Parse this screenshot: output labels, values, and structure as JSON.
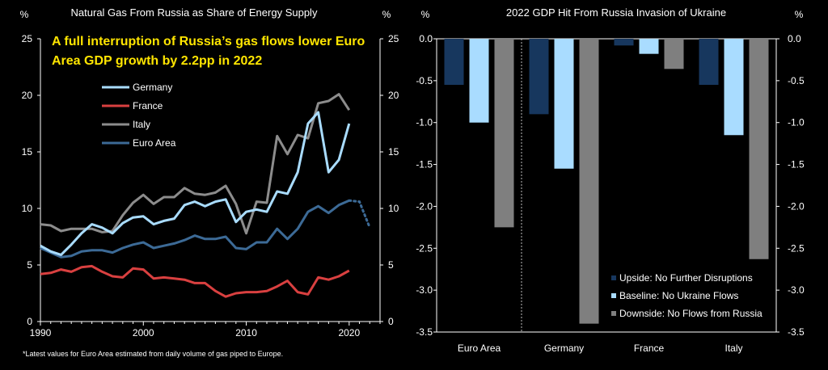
{
  "chart_data": [
    {
      "type": "line",
      "title": "Natural Gas From Russia as Share of Energy Supply",
      "annotation": "A full interruption of Russia’s gas flows lower Euro Area GDP growth by 2.2pp in 2022",
      "footnote": "*Latest values for Euro Area estimated from daily volume of gas piped to Europe.",
      "ylabel_left": "%",
      "ylabel_right": "%",
      "xlim": [
        1990,
        2023
      ],
      "ylim": [
        0,
        25
      ],
      "yticks": [
        "0",
        "5",
        "10",
        "15",
        "20",
        "25"
      ],
      "xticks": [
        {
          "value": 1990,
          "label": "1990"
        },
        {
          "value": 2000,
          "label": "2000"
        },
        {
          "value": 2010,
          "label": "2010"
        },
        {
          "value": 2020,
          "label": "2020"
        }
      ],
      "legend_position": "top-left",
      "series": [
        {
          "name": "Germany",
          "color": "#a9dcff",
          "x": [
            1990,
            1991,
            1992,
            1993,
            1994,
            1995,
            1996,
            1997,
            1998,
            1999,
            2000,
            2001,
            2002,
            2003,
            2004,
            2005,
            2006,
            2007,
            2008,
            2009,
            2010,
            2011,
            2012,
            2013,
            2014,
            2015,
            2016,
            2017,
            2018,
            2019,
            2020
          ],
          "y": [
            6.7,
            6.2,
            5.9,
            6.8,
            7.8,
            8.6,
            8.3,
            7.8,
            8.7,
            9.2,
            9.3,
            8.6,
            8.9,
            9.1,
            10.3,
            10.6,
            10.2,
            10.6,
            10.8,
            8.8,
            9.7,
            9.9,
            9.7,
            11.5,
            11.3,
            13.2,
            17.5,
            18.5,
            13.2,
            14.3,
            17.5
          ]
        },
        {
          "name": "France",
          "color": "#d94040",
          "x": [
            1990,
            1991,
            1992,
            1993,
            1994,
            1995,
            1996,
            1997,
            1998,
            1999,
            2000,
            2001,
            2002,
            2003,
            2004,
            2005,
            2006,
            2007,
            2008,
            2009,
            2010,
            2011,
            2012,
            2013,
            2014,
            2015,
            2016,
            2017,
            2018,
            2019,
            2020
          ],
          "y": [
            4.2,
            4.3,
            4.6,
            4.4,
            4.8,
            4.9,
            4.4,
            4.0,
            3.9,
            4.7,
            4.6,
            3.8,
            3.9,
            3.8,
            3.7,
            3.4,
            3.4,
            2.7,
            2.2,
            2.5,
            2.6,
            2.6,
            2.7,
            3.1,
            3.6,
            2.6,
            2.4,
            3.9,
            3.7,
            4.0,
            4.5
          ]
        },
        {
          "name": "Italy",
          "color": "#8c8c8c",
          "x": [
            1990,
            1991,
            1992,
            1993,
            1994,
            1995,
            1996,
            1997,
            1998,
            1999,
            2000,
            2001,
            2002,
            2003,
            2004,
            2005,
            2006,
            2007,
            2008,
            2009,
            2010,
            2011,
            2012,
            2013,
            2014,
            2015,
            2016,
            2017,
            2018,
            2019,
            2020
          ],
          "y": [
            8.6,
            8.5,
            8.0,
            8.2,
            8.2,
            8.2,
            7.9,
            8.0,
            9.4,
            10.5,
            11.2,
            10.4,
            11.0,
            11.0,
            11.8,
            11.3,
            11.2,
            11.4,
            12.0,
            10.4,
            7.8,
            10.6,
            10.5,
            16.4,
            14.8,
            16.5,
            16.2,
            19.3,
            19.5,
            20.1,
            18.7
          ]
        },
        {
          "name": "Euro Area",
          "color": "#3c6a96",
          "x": [
            1990,
            1991,
            1992,
            1993,
            1994,
            1995,
            1996,
            1997,
            1998,
            1999,
            2000,
            2001,
            2002,
            2003,
            2004,
            2005,
            2006,
            2007,
            2008,
            2009,
            2010,
            2011,
            2012,
            2013,
            2014,
            2015,
            2016,
            2017,
            2018,
            2019,
            2020
          ],
          "y": [
            6.5,
            6.1,
            5.7,
            5.8,
            6.2,
            6.3,
            6.3,
            6.1,
            6.5,
            6.8,
            7.0,
            6.5,
            6.7,
            6.9,
            7.2,
            7.6,
            7.3,
            7.3,
            7.5,
            6.5,
            6.4,
            7.0,
            7.0,
            8.2,
            7.3,
            8.2,
            9.7,
            10.2,
            9.6,
            10.3,
            10.7
          ],
          "estimate_x": [
            2020,
            2021,
            2022
          ],
          "estimate_y": [
            10.7,
            10.6,
            8.3
          ]
        }
      ]
    },
    {
      "type": "bar",
      "title": "2022 GDP Hit From Russia Invasion of Ukraine",
      "categories": [
        "Euro Area",
        "Germany",
        "France",
        "Italy"
      ],
      "ylim": [
        -3.5,
        0
      ],
      "yticks": [
        "0.0",
        "-0.5",
        "-1.0",
        "-1.5",
        "-2.0",
        "-2.5",
        "-3.0",
        "-3.5"
      ],
      "legend_position": "bottom-right",
      "series": [
        {
          "name": "Upside: No Further Disruptions",
          "color": "#17375e",
          "values": [
            -0.55,
            -0.9,
            -0.08,
            -0.55
          ]
        },
        {
          "name": "Baseline: No Ukraine Flows",
          "color": "#a9dcff",
          "values": [
            -1.0,
            -1.55,
            -0.18,
            -1.15
          ]
        },
        {
          "name": "Downside: No Flows from Russia",
          "color": "#7f7f7f",
          "values": [
            -2.25,
            -3.4,
            -0.36,
            -2.63
          ]
        }
      ]
    }
  ]
}
